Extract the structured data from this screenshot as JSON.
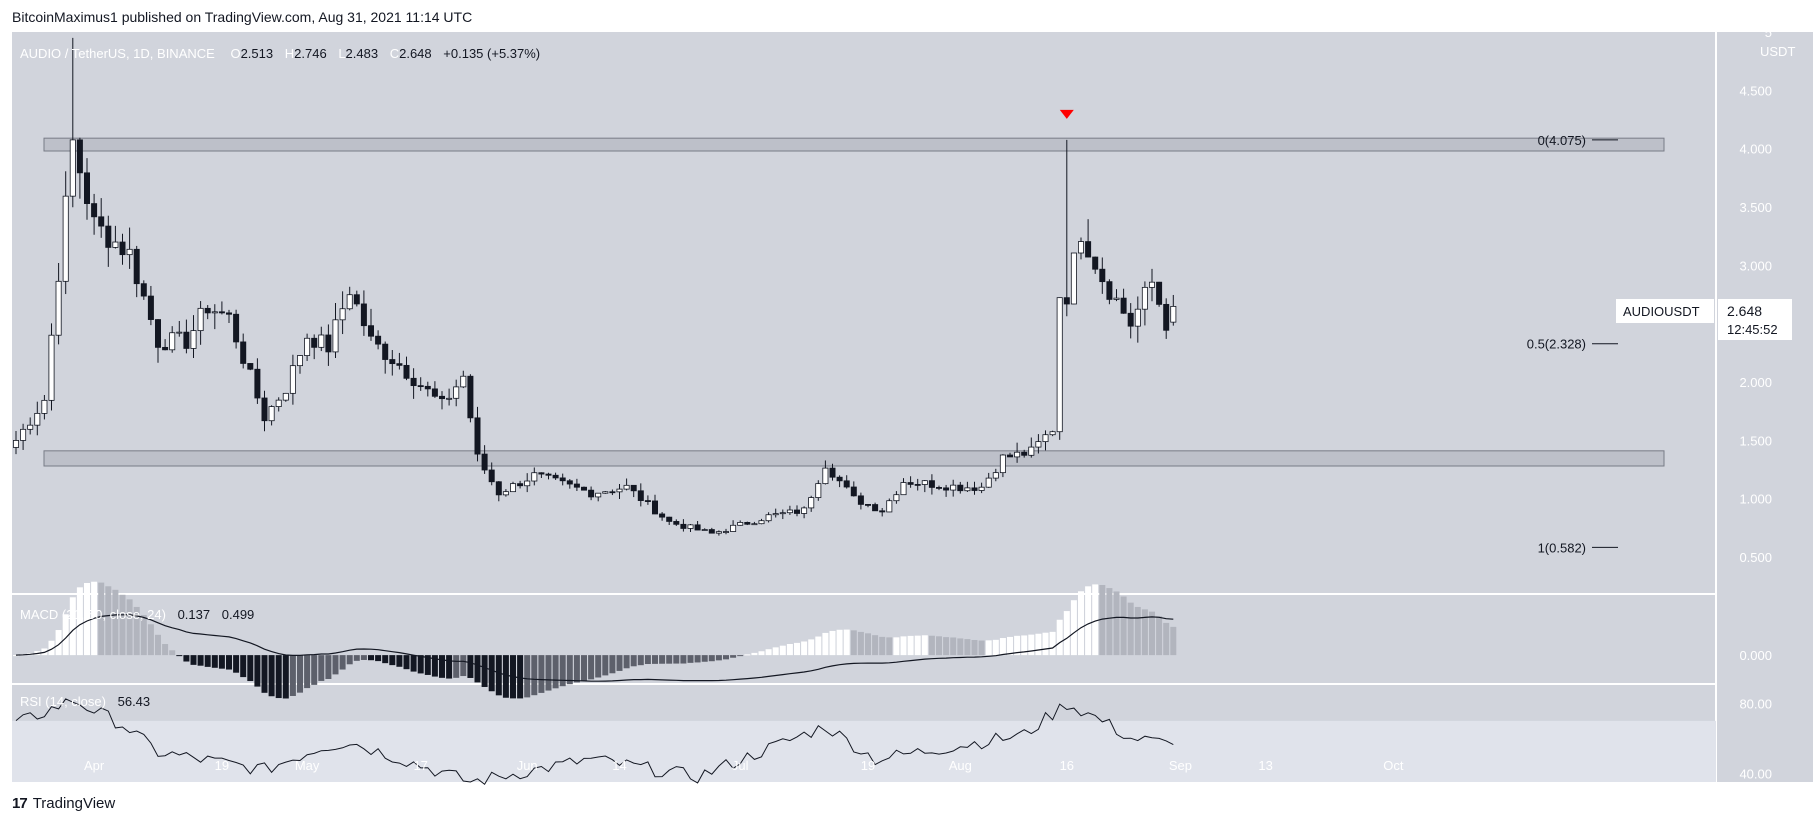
{
  "header": {
    "publisher": "BitcoinMaximus1 published on TradingView.com, Aug 31, 2021 11:14 UTC"
  },
  "brand": {
    "name": "TradingView",
    "logo": "17"
  },
  "legend": {
    "symbol": "AUDIO / TetherUS, 1D, BINANCE",
    "o_label": "O",
    "o": "2.513",
    "h_label": "H",
    "h": "2.746",
    "l_label": "L",
    "l": "2.483",
    "c_label": "C",
    "c": "2.648",
    "change": "+0.135 (+5.37%)"
  },
  "price_axis": {
    "unit": "USDT"
  },
  "last_price": {
    "symbol": "AUDIOUSDT",
    "value": "2.648",
    "countdown": "12:45:52"
  },
  "fib_labels": [
    {
      "text": "0(4.075)",
      "value": 4.075
    },
    {
      "text": "0.5(2.328)",
      "value": 2.328
    },
    {
      "text": "1(0.582)",
      "value": 0.582
    }
  ],
  "macd_legend": {
    "name": "MACD (21, 50, close, 24)",
    "v1": "0.137",
    "v2": "0.499"
  },
  "rsi_legend": {
    "name": "RSI (14, close)",
    "v1": "56.43"
  },
  "colors": {
    "background": "#d1d4dc",
    "up_body": "#ffffff",
    "down_body": "#131722",
    "wick": "#131722",
    "zone_fill": "#b2b5be",
    "marker": "#ff0000",
    "rsi_band": "#e0e3eb"
  },
  "chart_data": {
    "type": "candlestick",
    "symbol": "AUDIOUSDT",
    "interval": "1D",
    "date_range": [
      "2021-03-21",
      "2021-08-31"
    ],
    "x_ticks": [
      "Apr",
      "19",
      "May",
      "17",
      "Jun",
      "14",
      "Jul",
      "19",
      "Aug",
      "16",
      "Sep",
      "13",
      "Oct"
    ],
    "ylim": [
      0.2,
      5.0
    ],
    "y_ticks": [
      5.0,
      4.5,
      4.0,
      3.5,
      3.0,
      2.5,
      2.0,
      1.5,
      1.0,
      0.5
    ],
    "y_tick_labels": [
      "5",
      "4.500",
      "4.000",
      "3.500",
      "3.000",
      "",
      "2.000",
      "1.500",
      "1.000",
      "0.500"
    ],
    "zones": [
      {
        "from": 3.98,
        "to": 4.09
      },
      {
        "from": 1.28,
        "to": 1.41
      }
    ],
    "fib_levels": [
      4.075,
      2.328,
      0.582
    ],
    "anchor_points": [
      {
        "date": "2021-03-21",
        "value": 1.5
      },
      {
        "date": "2021-03-25",
        "value": 1.85
      },
      {
        "date": "2021-03-27",
        "value": 2.95
      },
      {
        "date": "2021-03-29",
        "value": 4.05
      },
      {
        "date": "2021-04-01",
        "value": 3.35
      },
      {
        "date": "2021-04-06",
        "value": 3.1
      },
      {
        "date": "2021-04-10",
        "value": 2.35
      },
      {
        "date": "2021-04-14",
        "value": 2.35
      },
      {
        "date": "2021-04-17",
        "value": 2.65
      },
      {
        "date": "2021-04-20",
        "value": 2.55
      },
      {
        "date": "2021-04-25",
        "value": 1.7
      },
      {
        "date": "2021-04-28",
        "value": 1.95
      },
      {
        "date": "2021-05-01",
        "value": 2.4
      },
      {
        "date": "2021-05-04",
        "value": 2.3
      },
      {
        "date": "2021-05-07",
        "value": 2.8
      },
      {
        "date": "2021-05-10",
        "value": 2.35
      },
      {
        "date": "2021-05-14",
        "value": 2.15
      },
      {
        "date": "2021-05-20",
        "value": 1.8
      },
      {
        "date": "2021-05-23",
        "value": 2.05
      },
      {
        "date": "2021-05-25",
        "value": 1.35
      },
      {
        "date": "2021-05-28",
        "value": 1.05
      },
      {
        "date": "2021-06-02",
        "value": 1.2
      },
      {
        "date": "2021-06-10",
        "value": 1.05
      },
      {
        "date": "2021-06-15",
        "value": 1.1
      },
      {
        "date": "2021-06-21",
        "value": 0.8
      },
      {
        "date": "2021-06-27",
        "value": 0.7
      },
      {
        "date": "2021-07-05",
        "value": 0.85
      },
      {
        "date": "2021-07-10",
        "value": 0.9
      },
      {
        "date": "2021-07-13",
        "value": 1.3
      },
      {
        "date": "2021-07-17",
        "value": 1.0
      },
      {
        "date": "2021-07-21",
        "value": 0.9
      },
      {
        "date": "2021-07-24",
        "value": 1.15
      },
      {
        "date": "2021-08-01",
        "value": 1.1
      },
      {
        "date": "2021-08-04",
        "value": 1.1
      },
      {
        "date": "2021-08-07",
        "value": 1.35
      },
      {
        "date": "2021-08-11",
        "value": 1.4
      },
      {
        "date": "2021-08-14",
        "value": 1.6
      },
      {
        "date": "2021-08-15",
        "value": 2.75
      },
      {
        "date": "2021-08-16",
        "value": 2.75
      },
      {
        "date": "2021-08-18",
        "value": 3.3
      },
      {
        "date": "2021-08-21",
        "value": 2.9
      },
      {
        "date": "2021-08-25",
        "value": 2.5
      },
      {
        "date": "2021-08-28",
        "value": 2.85
      },
      {
        "date": "2021-08-30",
        "value": 2.51
      },
      {
        "date": "2021-08-31",
        "value": 2.648
      }
    ],
    "peak_marker": {
      "date": "2021-08-16",
      "value": 4.075
    },
    "macd": {
      "ylim": [
        -0.25,
        0.55
      ],
      "y_ticks": [
        0.0
      ],
      "y_tick_labels": [
        "0.000"
      ]
    },
    "rsi": {
      "ylim": [
        35,
        90
      ],
      "band": [
        30,
        70
      ],
      "y_ticks": [
        80,
        40
      ],
      "y_tick_labels": [
        "80.00",
        "40.00"
      ],
      "anchor_points": [
        {
          "date": "2021-03-21",
          "value": 68
        },
        {
          "date": "2021-03-29",
          "value": 82
        },
        {
          "date": "2021-04-05",
          "value": 68
        },
        {
          "date": "2021-04-10",
          "value": 52
        },
        {
          "date": "2021-04-25",
          "value": 42
        },
        {
          "date": "2021-05-03",
          "value": 55
        },
        {
          "date": "2021-05-07",
          "value": 58
        },
        {
          "date": "2021-05-24",
          "value": 35
        },
        {
          "date": "2021-06-10",
          "value": 48
        },
        {
          "date": "2021-06-25",
          "value": 38
        },
        {
          "date": "2021-07-13",
          "value": 67
        },
        {
          "date": "2021-07-20",
          "value": 48
        },
        {
          "date": "2021-08-10",
          "value": 62
        },
        {
          "date": "2021-08-16",
          "value": 80
        },
        {
          "date": "2021-08-21",
          "value": 70
        },
        {
          "date": "2021-08-25",
          "value": 60
        },
        {
          "date": "2021-08-31",
          "value": 56.43
        }
      ]
    }
  }
}
